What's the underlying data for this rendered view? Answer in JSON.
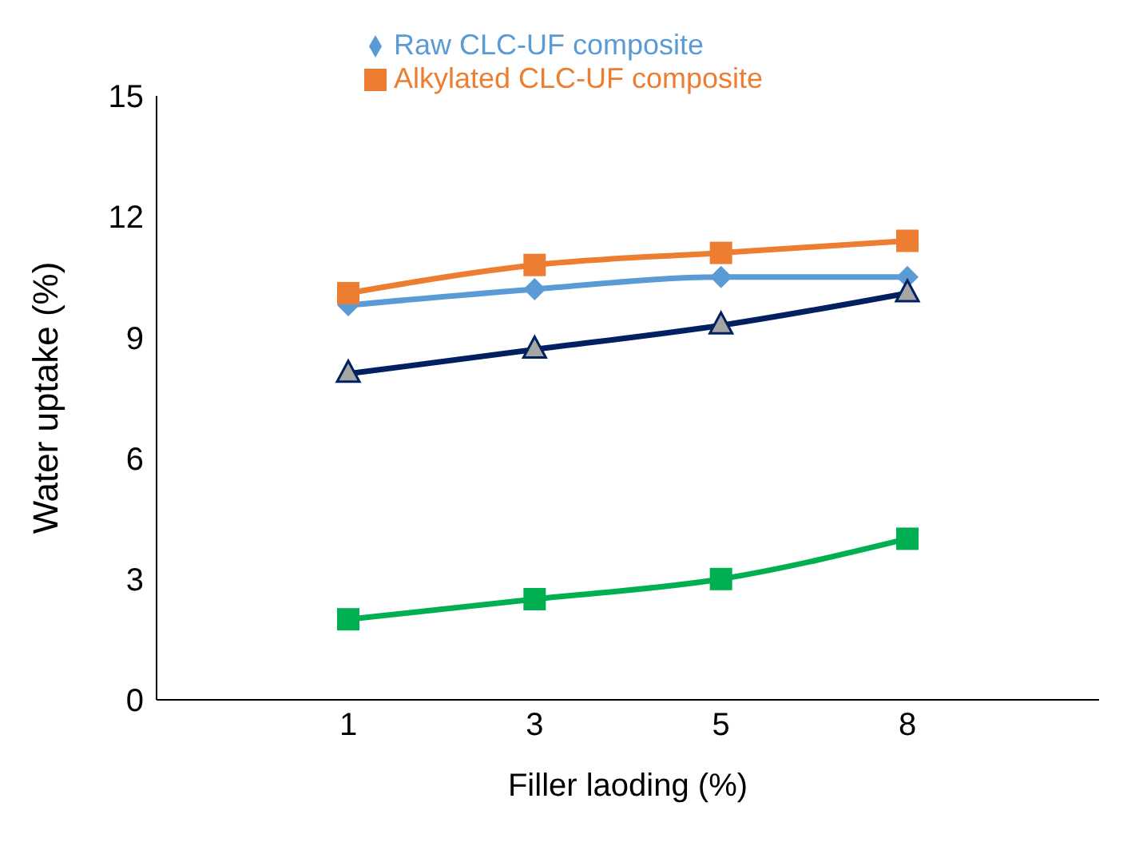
{
  "chart_data": {
    "type": "line",
    "xlabel": "Filler laoding (%)",
    "ylabel": "Water uptake (%)",
    "categories": [
      "1",
      "3",
      "5",
      "8"
    ],
    "series": [
      {
        "name": "Raw CLC-UF composite",
        "color": "#5b9bd5",
        "marker": "diamond",
        "values": [
          9.8,
          10.2,
          10.5,
          10.5
        ]
      },
      {
        "name": "Alkylated CLC-UF composite",
        "color": "#ed7d31",
        "marker": "square",
        "values": [
          10.1,
          10.8,
          11.1,
          11.4
        ]
      },
      {
        "color": "#002060",
        "marker": "triangle",
        "values": [
          8.1,
          8.7,
          9.3,
          10.1
        ]
      },
      {
        "color": "#00b050",
        "marker": "square",
        "values": [
          2.0,
          2.5,
          3.0,
          4.0
        ]
      }
    ],
    "ylim": [
      0,
      15
    ],
    "yticks": [
      0,
      3,
      6,
      9,
      12,
      15
    ],
    "legend": "top"
  }
}
